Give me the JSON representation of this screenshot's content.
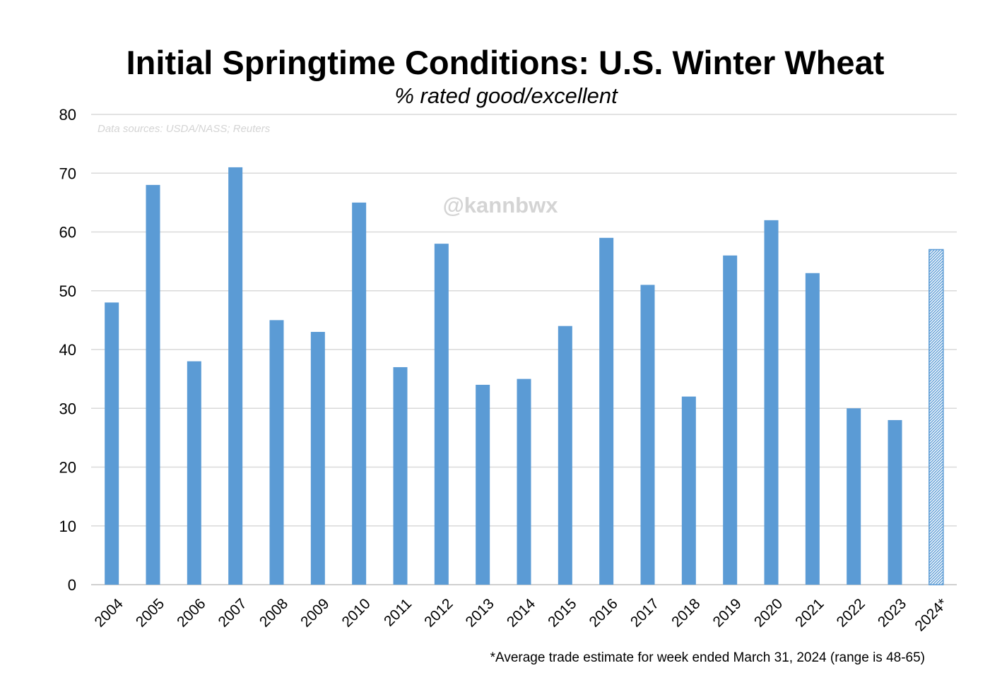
{
  "chart_data": {
    "type": "bar",
    "title": "Initial Springtime Conditions: U.S. Winter Wheat",
    "subtitle": "% rated good/excellent",
    "source_note": "Data sources: USDA/NASS; Reuters",
    "watermark": "@kannbwx",
    "footnote": "*Average trade estimate for week ended March 31, 2024 (range is 48-65)",
    "xlabel": "",
    "ylabel": "",
    "ylim": [
      0,
      80
    ],
    "yticks": [
      0,
      10,
      20,
      30,
      40,
      50,
      60,
      70,
      80
    ],
    "grid": true,
    "categories": [
      "2004",
      "2005",
      "2006",
      "2007",
      "2008",
      "2009",
      "2010",
      "2011",
      "2012",
      "2013",
      "2014",
      "2015",
      "2016",
      "2017",
      "2018",
      "2019",
      "2020",
      "2021",
      "2022",
      "2023",
      "2024*"
    ],
    "values": [
      48,
      68,
      38,
      71,
      45,
      43,
      65,
      37,
      58,
      34,
      35,
      44,
      59,
      51,
      32,
      56,
      62,
      53,
      30,
      28,
      57
    ],
    "estimated": [
      false,
      false,
      false,
      false,
      false,
      false,
      false,
      false,
      false,
      false,
      false,
      false,
      false,
      false,
      false,
      false,
      false,
      false,
      false,
      false,
      true
    ],
    "bar_color": "#5b9bd5",
    "estimate_pattern_color": "#5b9bd5"
  }
}
